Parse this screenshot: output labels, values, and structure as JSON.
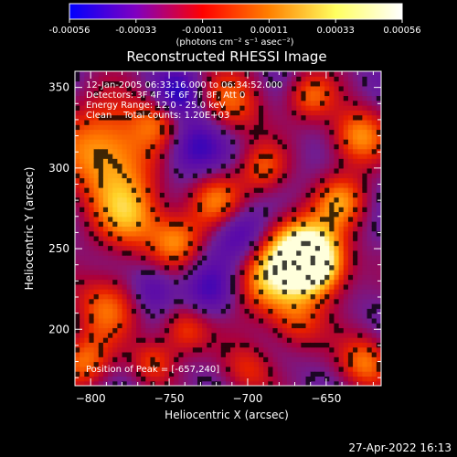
{
  "chart_data": {
    "type": "heatmap",
    "title": "Reconstructed RHESSI Image",
    "xlabel": "Heliocentric X (arcsec)",
    "ylabel": "Heliocentric Y (arcsec)",
    "xlim": [
      -810,
      -615
    ],
    "ylim": [
      165,
      360
    ],
    "x_ticks": [
      -800,
      -750,
      -700,
      -650
    ],
    "y_ticks": [
      200,
      250,
      300,
      350
    ],
    "colorbar": {
      "ticks": [
        "-0.00056",
        "-0.00033",
        "-0.00011",
        "0.00011",
        "0.00033",
        "0.00056"
      ],
      "unit_label": "(photons cm⁻² s⁻¹ asec⁻²)",
      "colors": [
        "#0000ff",
        "#8000c0",
        "#ff0000",
        "#ff8000",
        "#ffff60",
        "#ffffff"
      ]
    },
    "annotations": [
      "12-Jan-2005 06:33:16.000 to 06:34:52.000",
      "Detectors: 3F 4F 5F 6F 7F 8F, Att 0",
      "Energy Range: 12.0 - 25.0 keV",
      "Clean    Total counts: 1.20E+03"
    ],
    "peak_label": "Position of Peak = [-657,240]",
    "peak": {
      "x": -657,
      "y": 240
    },
    "blobs": [
      {
        "x": -657,
        "y": 240,
        "r": 14,
        "v": 1.0
      },
      {
        "x": -668,
        "y": 250,
        "r": 16,
        "v": 0.8
      },
      {
        "x": -690,
        "y": 230,
        "r": 15,
        "v": 0.55
      },
      {
        "x": -790,
        "y": 310,
        "r": 22,
        "v": 0.75
      },
      {
        "x": -775,
        "y": 270,
        "r": 16,
        "v": 0.6
      },
      {
        "x": -755,
        "y": 330,
        "r": 12,
        "v": 0.45
      },
      {
        "x": -745,
        "y": 255,
        "r": 12,
        "v": 0.55
      },
      {
        "x": -740,
        "y": 200,
        "r": 11,
        "v": 0.5
      },
      {
        "x": -790,
        "y": 215,
        "r": 15,
        "v": 0.55
      },
      {
        "x": -710,
        "y": 340,
        "r": 15,
        "v": 0.5
      },
      {
        "x": -720,
        "y": 280,
        "r": 13,
        "v": 0.55
      },
      {
        "x": -630,
        "y": 320,
        "r": 13,
        "v": 0.65
      },
      {
        "x": -640,
        "y": 280,
        "r": 12,
        "v": 0.55
      },
      {
        "x": -625,
        "y": 180,
        "r": 12,
        "v": 0.6
      },
      {
        "x": -670,
        "y": 205,
        "r": 13,
        "v": 0.45
      },
      {
        "x": -805,
        "y": 180,
        "r": 12,
        "v": 0.55
      },
      {
        "x": -700,
        "y": 175,
        "r": 12,
        "v": 0.4
      },
      {
        "x": -660,
        "y": 345,
        "r": 11,
        "v": 0.5
      },
      {
        "x": -690,
        "y": 300,
        "r": 11,
        "v": 0.45
      },
      {
        "x": -760,
        "y": 180,
        "r": 10,
        "v": 0.45
      },
      {
        "x": -735,
        "y": 315,
        "r": -14,
        "v": -0.5
      },
      {
        "x": -745,
        "y": 345,
        "r": -10,
        "v": -0.55
      },
      {
        "x": -705,
        "y": 260,
        "r": -12,
        "v": -0.45
      },
      {
        "x": -725,
        "y": 225,
        "r": -12,
        "v": -0.35
      },
      {
        "x": -760,
        "y": 225,
        "r": -10,
        "v": -0.35
      }
    ]
  },
  "footer": {
    "timestamp": "27-Apr-2022 16:13"
  }
}
